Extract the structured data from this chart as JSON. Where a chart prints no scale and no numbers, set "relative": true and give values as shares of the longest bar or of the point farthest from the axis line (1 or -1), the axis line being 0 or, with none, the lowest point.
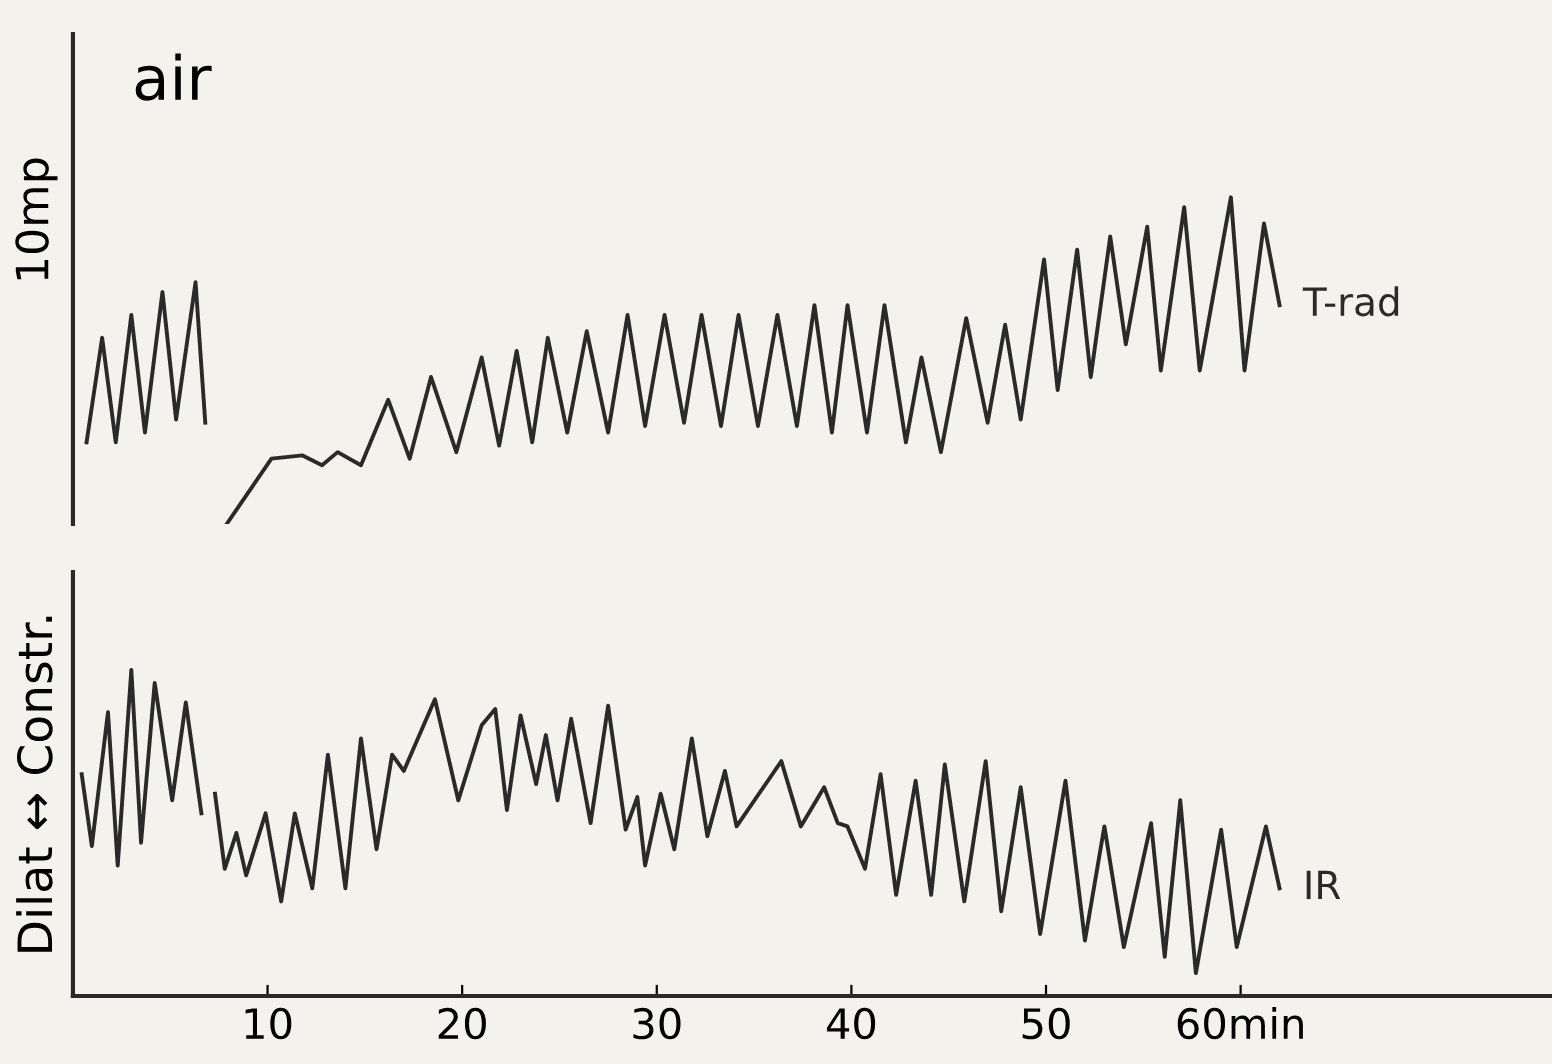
{
  "chart_data": [
    {
      "type": "line",
      "relative": true,
      "xlim": [
        0,
        76
      ],
      "tick_labels": false,
      "grid": false,
      "legend": false,
      "annotations": [
        "air",
        "10mp"
      ],
      "series": [
        {
          "name": "T-rad",
          "color": "#2a2a2a",
          "x": [
            0.7,
            1.5,
            2.2,
            3.0,
            3.7,
            4.6,
            5.3,
            6.3,
            6.8,
            7.3,
            7.9,
            10.2,
            11.8,
            12.8,
            13.6,
            14.8,
            16.2,
            17.3,
            18.4,
            19.7,
            21.0,
            21.9,
            22.8,
            23.6,
            24.4,
            25.4,
            26.4,
            27.5,
            28.5,
            29.4,
            30.4,
            31.4,
            32.3,
            33.3,
            34.2,
            35.2,
            36.2,
            37.2,
            38.1,
            39.0,
            39.8,
            40.8,
            41.7,
            42.8,
            43.6,
            44.6,
            45.9,
            47.0,
            47.9,
            48.7,
            49.9,
            50.6,
            51.6,
            52.3,
            53.3,
            54.1,
            55.2,
            55.9,
            57.1,
            57.9,
            59.5,
            60.2,
            61.2,
            62.0
          ],
          "values": [
            0.25,
            0.57,
            0.25,
            0.64,
            0.28,
            0.71,
            0.32,
            0.74,
            0.31,
            null,
            0,
            0.2,
            0.21,
            0.18,
            0.22,
            0.18,
            0.38,
            0.2,
            0.45,
            0.22,
            0.51,
            0.24,
            0.53,
            0.25,
            0.57,
            0.28,
            0.59,
            0.28,
            0.64,
            0.3,
            0.64,
            0.31,
            0.64,
            0.3,
            0.64,
            0.3,
            0.64,
            0.3,
            0.67,
            0.28,
            0.67,
            0.28,
            0.67,
            0.25,
            0.51,
            0.22,
            0.63,
            0.31,
            0.61,
            0.32,
            0.81,
            0.41,
            0.84,
            0.45,
            0.88,
            0.55,
            0.91,
            0.47,
            0.97,
            0.47,
            1,
            0.47,
            0.92,
            0.67
          ]
        }
      ]
    },
    {
      "type": "line",
      "relative": true,
      "xlim": [
        0,
        76
      ],
      "xticks": [
        10,
        20,
        30,
        40,
        50,
        {
          "value": 60,
          "label": "60min"
        }
      ],
      "tick_labels": "x",
      "ylabel": "Dilat ↔ Constr.",
      "grid": false,
      "legend": false,
      "series": [
        {
          "name": "IR",
          "color": "#2a2a2a",
          "x": [
            0.45,
            0.97,
            1.8,
            2.3,
            3.0,
            3.5,
            4.2,
            5.1,
            5.8,
            6.6,
            7.0,
            7.3,
            7.8,
            8.4,
            8.9,
            9.9,
            10.7,
            11.4,
            12.3,
            13.1,
            14.0,
            14.8,
            15.6,
            16.4,
            17.0,
            18.6,
            19.8,
            21.0,
            21.7,
            22.3,
            23.0,
            23.8,
            24.3,
            24.9,
            25.6,
            26.6,
            27.5,
            28.4,
            29.0,
            29.4,
            30.2,
            30.9,
            31.8,
            32.6,
            33.5,
            34.1,
            36.4,
            37.4,
            38.6,
            39.3,
            39.8,
            40.7,
            41.5,
            42.3,
            43.3,
            44.1,
            44.8,
            45.8,
            46.9,
            47.7,
            48.7,
            49.7,
            51.0,
            52.0,
            53.0,
            54.0,
            55.4,
            56.1,
            56.9,
            57.7,
            59.0,
            59.8,
            61.3,
            62.0
          ],
          "values": [
            0.68,
            0.46,
            0.87,
            0.4,
            1.0,
            0.47,
            0.96,
            0.6,
            0.9,
            0.56,
            null,
            0.62,
            0.39,
            0.5,
            0.37,
            0.56,
            0.29,
            0.56,
            0.33,
            0.74,
            0.33,
            0.79,
            0.45,
            0.74,
            0.69,
            0.91,
            0.6,
            0.83,
            0.88,
            0.57,
            0.86,
            0.65,
            0.8,
            0.6,
            0.85,
            0.53,
            0.89,
            0.51,
            0.61,
            0.4,
            0.62,
            0.45,
            0.79,
            0.49,
            0.69,
            0.52,
            0.72,
            0.52,
            0.64,
            0.53,
            0.52,
            0.39,
            0.68,
            0.31,
            0.66,
            0.31,
            0.71,
            0.29,
            0.72,
            0.26,
            0.64,
            0.19,
            0.66,
            0.17,
            0.52,
            0.15,
            0.53,
            0.12,
            0.6,
            0.07,
            0.51,
            0.15,
            0.52,
            0.33
          ]
        }
      ]
    }
  ]
}
